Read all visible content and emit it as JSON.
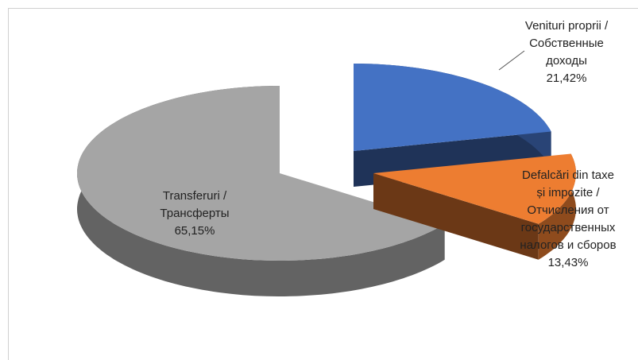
{
  "chart_data": {
    "type": "pie3d",
    "categories": [
      "Venituri proprii / Собственные доходы",
      "Defalcări din taxe și impozite / Отчисления от государственных налогов и сборов",
      "Transferuri / Трансферты"
    ],
    "values": [
      21.42,
      13.43,
      65.15
    ],
    "value_labels": [
      "21,42%",
      "13,43%",
      "65,15%"
    ],
    "colors": [
      "#4472c4",
      "#ed7d31",
      "#a5a5a5"
    ]
  }
}
